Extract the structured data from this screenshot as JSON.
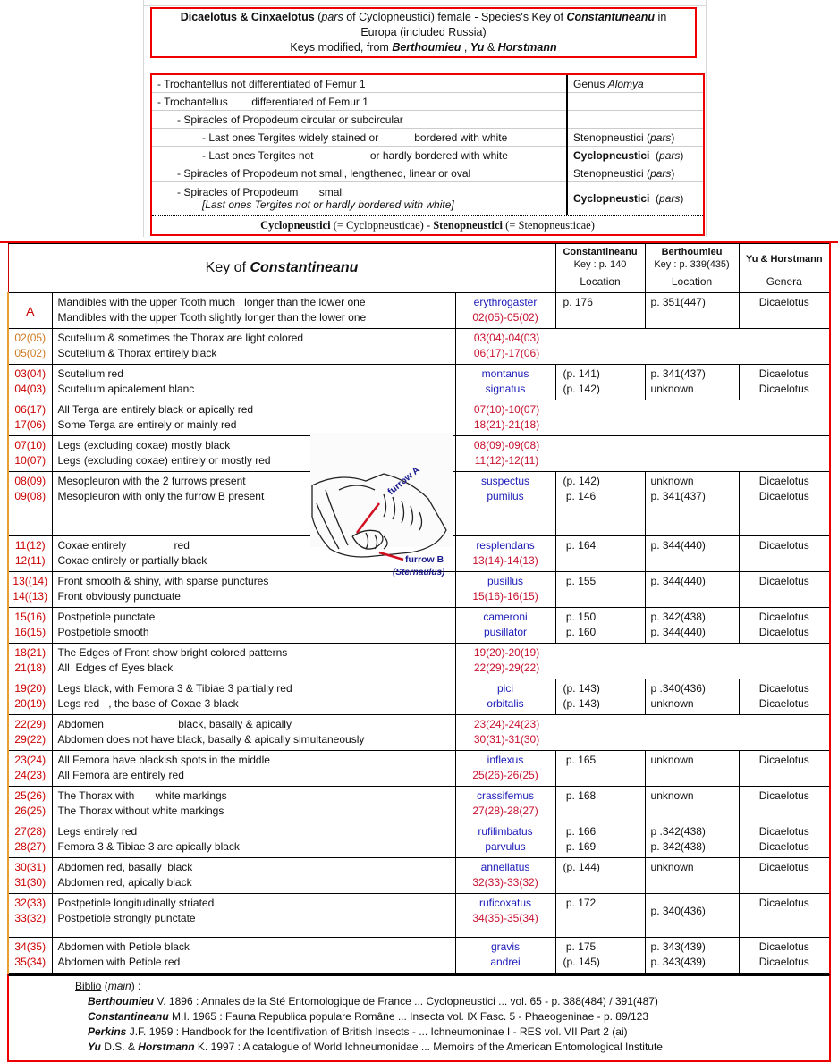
{
  "title": {
    "line1_bold1": "Dicaelotus & Cinxaelotus",
    "line1_ital": "pars",
    "line1_pre": " (",
    "line1_mid": " of Cyclopneustici) female - Species's Key of ",
    "line1_bold2": "Constantuneanu",
    "line1_end": " in",
    "line2": "Europa (included Russia)",
    "line3_pre": "Keys modified, from ",
    "line3_b1": "Berthoumieu",
    "line3_sep": " , ",
    "line3_b2": "Yu",
    "line3_amp": " & ",
    "line3_b3": "Horstmann"
  },
  "pre_key": {
    "rows": [
      {
        "text": "- Trochantellus not differentiated of Femur 1",
        "indent": 0,
        "result": "Genus ",
        "result_ital": "Alomya"
      },
      {
        "text": "- Trochantellus        differentiated of Femur 1",
        "indent": 0,
        "result": ""
      },
      {
        "text": "- Spiracles of Propodeum circular or subcircular",
        "indent": 1,
        "result": ""
      },
      {
        "text": "- Last ones Tergites widely stained or            bordered with white",
        "indent": 2,
        "result": "Stenopneustici (",
        "result_ital": "pars",
        "result_end": ")"
      },
      {
        "text": "- Last ones Tergites not                   or hardly bordered with white",
        "indent": 2,
        "result_bold": "Cyclopneustici",
        "result": "  (",
        "result_ital": "pars",
        "result_end": ")"
      },
      {
        "text": "- Spiracles of Propodeum not small, lengthened, linear or oval",
        "indent": 1,
        "result": "Stenopneustici (",
        "result_ital": "pars",
        "result_end": ")"
      },
      {
        "text": "- Spiracles of Propodeum       small",
        "text2": "[Last ones Tergites not or hardly bordered with white]",
        "indent": 1,
        "result_bold": "Cyclopneustici",
        "result": "  (",
        "result_ital": "pars",
        "result_end": ")"
      }
    ],
    "footer_b1": "Cyclopneustici",
    "footer_mid": " (= Cyclopneusticae)  -  ",
    "footer_b2": "Stenopneustici",
    "footer_end": " (= Stenopneusticae)"
  },
  "main_header": {
    "title_pre": "Key of ",
    "title_bold": "Constantineanu",
    "col_const": "Constantineanu",
    "col_const_sub": "Key : p. 140",
    "col_berth": "Berthoumieu",
    "col_berth_sub": "Key : p. 339(435)",
    "col_yu": "Yu & Horstmann",
    "loc1": "Location",
    "loc2": "Location",
    "genera": "Genera"
  },
  "rows": [
    {
      "codes": [
        "A"
      ],
      "big": true,
      "desc": [
        "Mandibles with the upper Tooth much   longer than the lower one",
        "Mandibles with the upper Tooth slightly longer than the lower one"
      ],
      "links": [
        [
          "sp",
          "erythrogaster"
        ],
        [
          "cd",
          "02(05)-05(02)"
        ]
      ],
      "const": [
        "p. 176"
      ],
      "berth": [
        "p. 351(447)"
      ],
      "yu": [
        "Dicaelotus"
      ]
    },
    {
      "codes": [
        "02(05)",
        "05(02)"
      ],
      "orange": true,
      "desc": [
        "Scutellum & sometimes the Thorax are light colored",
        "Scutellum & Thorax entirely black"
      ],
      "links": [
        [
          "cd",
          "03(04)-04(03)"
        ],
        [
          "cd",
          "06(17)-17(06)"
        ]
      ],
      "span": true
    },
    {
      "codes": [
        "03(04)",
        "04(03)"
      ],
      "desc": [
        "Scutellum red",
        "Scutellum apicalement blanc"
      ],
      "links": [
        [
          "sp",
          "montanus"
        ],
        [
          "sp",
          "signatus"
        ]
      ],
      "const": [
        "(p. 141)",
        "(p. 142)"
      ],
      "berth": [
        "p. 341(437)",
        "unknown"
      ],
      "yu": [
        "Dicaelotus",
        "Dicaelotus"
      ]
    },
    {
      "codes": [
        "06(17)",
        "17(06)"
      ],
      "desc": [
        "All Terga are entirely black or apically red",
        "Some Terga are entirely or mainly red"
      ],
      "links": [
        [
          "cd",
          "07(10)-10(07)"
        ],
        [
          "cd",
          "18(21)-21(18)"
        ]
      ],
      "span": true
    },
    {
      "codes": [
        "07(10)",
        "10(07)"
      ],
      "desc": [
        "Legs (excluding coxae) mostly black",
        "Legs (excluding coxae) entirely or mostly red"
      ],
      "links": [
        [
          "cd",
          "08(09)-09(08)"
        ],
        [
          "cd",
          "11(12)-12(11)"
        ]
      ],
      "span": true
    },
    {
      "codes": [
        "08(09)",
        "09(08)"
      ],
      "desc": [
        "Mesopleuron with the 2 furrows present",
        "Mesopleuron with only the furrow B present"
      ],
      "links": [
        [
          "sp",
          "suspectus"
        ],
        [
          "sp",
          "pumilus"
        ]
      ],
      "const": [
        "(p. 142)",
        " p. 146"
      ],
      "berth": [
        "unknown",
        "p. 341(437)"
      ],
      "yu": [
        "Dicaelotus",
        "Dicaelotus"
      ]
    },
    {
      "codes": [
        "11(12)",
        "12(11)"
      ],
      "desc": [
        "Coxae entirely                red",
        "Coxae entirely or partially black"
      ],
      "links": [
        [
          "sp",
          "resplendans"
        ],
        [
          "cd",
          "13(14)-14(13)"
        ]
      ],
      "const": [
        " p. 164"
      ],
      "berth": [
        "p. 344(440)"
      ],
      "yu": [
        "Dicaelotus"
      ]
    },
    {
      "codes": [
        "13((14)",
        "14((13)"
      ],
      "desc": [
        "Front smooth & shiny, with sparse punctures",
        "Front obviously punctuate"
      ],
      "links": [
        [
          "sp",
          "pusillus"
        ],
        [
          "cd",
          "15(16)-16(15)"
        ]
      ],
      "const": [
        " p. 155"
      ],
      "berth": [
        "p. 344(440)"
      ],
      "yu": [
        "Dicaelotus"
      ]
    },
    {
      "codes": [
        "15(16)",
        "16(15)"
      ],
      "desc": [
        "Postpetiole punctate",
        "Postpetiole smooth"
      ],
      "links": [
        [
          "sp",
          "cameroni"
        ],
        [
          "sp",
          "pusillator"
        ]
      ],
      "const": [
        " p. 150",
        " p. 160"
      ],
      "berth": [
        "p. 342(438)",
        "p. 344(440)"
      ],
      "yu": [
        "Dicaelotus",
        "Dicaelotus"
      ]
    },
    {
      "codes": [
        "18(21)",
        "21(18)"
      ],
      "desc": [
        "The Edges of Front show bright colored patterns",
        "All  Edges of Eyes black"
      ],
      "links": [
        [
          "cd",
          "19(20)-20(19)"
        ],
        [
          "cd",
          "22(29)-29(22)"
        ]
      ],
      "span": true
    },
    {
      "codes": [
        "19(20)",
        "20(19)"
      ],
      "desc": [
        "Legs black, with Femora 3 & Tibiae 3 partially red",
        "Legs red   , the base of Coxae 3 black"
      ],
      "links": [
        [
          "sp",
          "pici"
        ],
        [
          "sp",
          "orbitalis"
        ]
      ],
      "const": [
        "(p. 143)",
        "(p. 143)"
      ],
      "berth": [
        "p .340(436)",
        "unknown"
      ],
      "yu": [
        "Dicaelotus",
        "Dicaelotus"
      ]
    },
    {
      "codes": [
        "22(29)",
        "29(22)"
      ],
      "desc": [
        "Abdomen                         black, basally & apically",
        "Abdomen does not have black, basally & apically simultaneously"
      ],
      "links": [
        [
          "cd",
          "23(24)-24(23)"
        ],
        [
          "cd",
          "30(31)-31(30)"
        ]
      ],
      "span": true
    },
    {
      "codes": [
        "23(24)",
        "24(23)"
      ],
      "desc": [
        "All Femora have blackish spots in the middle",
        "All Femora are entirely red"
      ],
      "links": [
        [
          "sp",
          "inflexus"
        ],
        [
          "cd",
          "25(26)-26(25)"
        ]
      ],
      "const": [
        " p. 165"
      ],
      "berth": [
        "unknown"
      ],
      "yu": [
        "Dicaelotus"
      ]
    },
    {
      "codes": [
        "25(26)",
        "26(25)"
      ],
      "desc": [
        "The Thorax with       white markings",
        "The Thorax without white markings"
      ],
      "links": [
        [
          "sp",
          "crassifemus"
        ],
        [
          "cd",
          "27(28)-28(27)"
        ]
      ],
      "const": [
        " p. 168"
      ],
      "berth": [
        "unknown"
      ],
      "yu": [
        "Dicaelotus"
      ]
    },
    {
      "codes": [
        "27(28)",
        "28(27)"
      ],
      "desc": [
        "Legs entirely red",
        "Femora 3 & Tibiae 3 are apically black"
      ],
      "links": [
        [
          "sp",
          "rufilimbatus"
        ],
        [
          "sp",
          "parvulus"
        ]
      ],
      "const": [
        " p. 166",
        " p. 169"
      ],
      "berth": [
        "p .342(438)",
        "p. 342(438)"
      ],
      "yu": [
        "Dicaelotus",
        "Dicaelotus"
      ]
    },
    {
      "codes": [
        "30(31)",
        "31(30)"
      ],
      "desc": [
        "Abdomen red, basally  black",
        "Abdomen red, apically black"
      ],
      "links": [
        [
          "sp",
          "annellatus"
        ],
        [
          "cd",
          "32(33)-33(32)"
        ]
      ],
      "const": [
        "(p. 144)"
      ],
      "berth": [
        "unknown"
      ],
      "yu": [
        "Dicaelotus"
      ]
    },
    {
      "codes": [
        "32(33)",
        "33(32)"
      ],
      "desc": [
        "Postpetiole longitudinally striated",
        "Postpetiole strongly punctate"
      ],
      "links": [
        [
          "sp",
          "ruficoxatus"
        ],
        [
          "cd",
          "34(35)-35(34)"
        ]
      ],
      "const": [
        " p. 172"
      ],
      "berth": [
        "",
        "p. 340(436)"
      ],
      "yu": [
        "Dicaelotus"
      ]
    },
    {
      "codes": [
        "34(35)",
        "35(34)"
      ],
      "desc": [
        "Abdomen with Petiole black",
        "Abdomen with Petiole red"
      ],
      "links": [
        [
          "sp",
          "gravis"
        ],
        [
          "sp",
          "andrei"
        ]
      ],
      "const": [
        " p. 175",
        "(p. 145)"
      ],
      "berth": [
        "p. 343(439)",
        "p. 343(439)"
      ],
      "yu": [
        "Dicaelotus",
        "Dicaelotus"
      ]
    }
  ],
  "figure": {
    "label_a": "furrow A",
    "label_b": "furrow B",
    "label_b2": "(Sternaulus)"
  },
  "biblio": {
    "head": "Biblio",
    "head_ital": "main",
    "entries": [
      {
        "b": "Berthoumieu",
        "t": " V. 1896  :  Annales de la Sté Entomologique de France ... Cyclopneustici ... vol. 65 - p. 388(484) / 391(487)"
      },
      {
        "b": "Constantineanu",
        "t": " M.I. 1965 : Fauna Republica populare Române ... Insecta vol. IX Fasc. 5 -  Phaeogeninae - p. 89/123"
      },
      {
        "b": "Perkins",
        "t": " J.F. 1959 : Handbook for the Identifivation of British Insects - ... Ichneumoninae I - RES vol. VII Part 2 (ai)"
      },
      {
        "b": "Yu",
        "t": " D.S. & ",
        "b2": "Horstmann",
        "t2": " K. 1997 : A catalogue of World Ichneumonidae ... Memoirs of the American Entomological Institute"
      }
    ]
  },
  "colors": {
    "border": "#e00000",
    "species": "#1a1ab8",
    "code": "#c8102e",
    "orange": "#d07a20"
  }
}
